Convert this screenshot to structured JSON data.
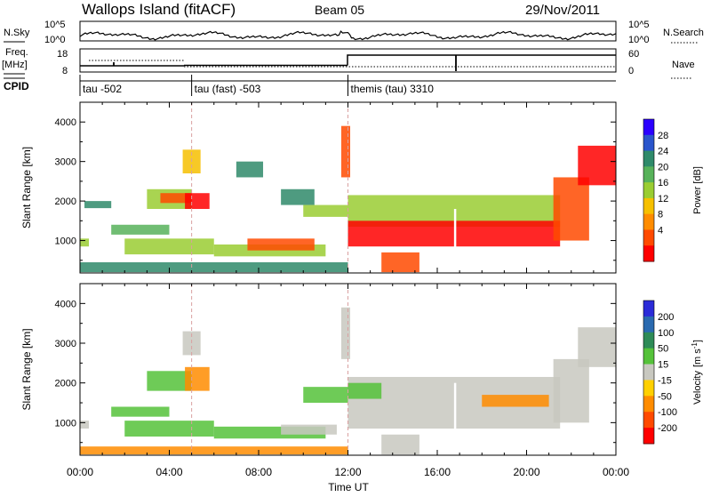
{
  "header": {
    "site": "Wallops Island (fitACF)",
    "beam": "Beam 05",
    "date": "29/Nov/2011"
  },
  "panels": {
    "nsky_label": "N.Sky",
    "nsky_ticks_left": [
      "10^5",
      "10^0"
    ],
    "nsearch_label": "N.Search",
    "nsearch_ticks_right": [
      "10^5",
      "10^0"
    ],
    "freq_label": "Freq.",
    "freq_unit": "[MHz]",
    "freq_ticks": [
      "18",
      "8"
    ],
    "nave_label": "Nave",
    "nave_ticks": [
      "60",
      "0"
    ],
    "cpid_label": "CPID",
    "cpid_segments": [
      {
        "label": "tau -502",
        "start_h": 0
      },
      {
        "label": "tau (fast) -503",
        "start_h": 5
      },
      {
        "label": "themis (tau) 3310",
        "start_h": 12
      }
    ]
  },
  "chart_data": [
    {
      "type": "heatmap",
      "ylabel": "Slant Range [km]",
      "ylim": [
        180,
        4500
      ],
      "y_ticks": [
        "1000",
        "2000",
        "3000",
        "4000"
      ],
      "x_ticks": [
        "00:00",
        "04:00",
        "08:00",
        "12:00",
        "16:00",
        "20:00",
        "00:00"
      ],
      "colorbar_label": "Power [dB]",
      "colorbar_ticks": [
        "28",
        "24",
        "20",
        "16",
        "12",
        "8",
        "4"
      ],
      "colorbar_colors": [
        "#2b00ff",
        "#2a55cc",
        "#2f8a6a",
        "#57b25a",
        "#9acd32",
        "#f6c000",
        "#ff8c00",
        "#ff4a00",
        "#ff0000"
      ],
      "regions": [
        {
          "t0": 0.0,
          "t1": 0.4,
          "r0": 850,
          "r1": 1050,
          "level": 4
        },
        {
          "t0": 0.2,
          "t1": 1.4,
          "r0": 1820,
          "r1": 2000,
          "level": 2
        },
        {
          "t0": 1.4,
          "t1": 4.0,
          "r0": 1150,
          "r1": 1400,
          "level": 3
        },
        {
          "t0": 2.0,
          "t1": 6.0,
          "r0": 650,
          "r1": 1050,
          "level": 4
        },
        {
          "t0": 6.0,
          "t1": 11.0,
          "r0": 600,
          "r1": 900,
          "level": 4
        },
        {
          "t0": 7.5,
          "t1": 10.5,
          "r0": 750,
          "r1": 1050,
          "level": 7
        },
        {
          "t0": 3.0,
          "t1": 5.0,
          "r0": 1800,
          "r1": 2300,
          "level": 4
        },
        {
          "t0": 3.6,
          "t1": 5.0,
          "r0": 1950,
          "r1": 2200,
          "level": 7
        },
        {
          "t0": 4.7,
          "t1": 5.8,
          "r0": 1800,
          "r1": 2200,
          "level": 8
        },
        {
          "t0": 4.6,
          "t1": 5.4,
          "r0": 2700,
          "r1": 3300,
          "level": 5
        },
        {
          "t0": 7.0,
          "t1": 8.2,
          "r0": 2600,
          "r1": 3000,
          "level": 2
        },
        {
          "t0": 9.0,
          "t1": 10.5,
          "r0": 1900,
          "r1": 2300,
          "level": 2
        },
        {
          "t0": 10.0,
          "t1": 12.0,
          "r0": 1600,
          "r1": 1900,
          "level": 4
        },
        {
          "t0": 0.0,
          "t1": 12.0,
          "r0": 200,
          "r1": 450,
          "level": 2
        },
        {
          "t0": 11.7,
          "t1": 12.1,
          "r0": 2600,
          "r1": 3900,
          "level": 7
        },
        {
          "t0": 12.0,
          "t1": 21.5,
          "r0": 1350,
          "r1": 2150,
          "level": 4
        },
        {
          "t0": 12.0,
          "t1": 21.5,
          "r0": 850,
          "r1": 1500,
          "level": 8
        },
        {
          "t0": 13.5,
          "t1": 15.2,
          "r0": 200,
          "r1": 700,
          "level": 7
        },
        {
          "t0": 21.2,
          "t1": 22.8,
          "r0": 1000,
          "r1": 2600,
          "level": 7
        },
        {
          "t0": 22.3,
          "t1": 24.0,
          "r0": 2400,
          "r1": 3400,
          "level": 8
        }
      ]
    },
    {
      "type": "heatmap",
      "ylabel": "Slant Range [km]",
      "ylim": [
        180,
        4500
      ],
      "y_ticks": [
        "1000",
        "2000",
        "3000",
        "4000"
      ],
      "x_ticks": [
        "00:00",
        "04:00",
        "08:00",
        "12:00",
        "16:00",
        "20:00",
        "00:00"
      ],
      "xlabel": "Time UT",
      "colorbar_label": "Velocity",
      "colorbar_unit": "[m s",
      "colorbar_unit_sup": "-1",
      "colorbar_unit_end": "]",
      "colorbar_ticks": [
        "200",
        "100",
        "50",
        "15",
        "-15",
        "-50",
        "-100",
        "-200"
      ],
      "colorbar_colors": [
        "#2b2bd8",
        "#2a6ab0",
        "#2e8b57",
        "#55c23a",
        "#c8c8c0",
        "#ffd000",
        "#ff8c00",
        "#ff4a00",
        "#ff0000"
      ],
      "regions": [
        {
          "t0": 0.0,
          "t1": 0.4,
          "r0": 850,
          "r1": 1050,
          "level": 4
        },
        {
          "t0": 1.4,
          "t1": 4.0,
          "r0": 1150,
          "r1": 1400,
          "level": 3
        },
        {
          "t0": 2.0,
          "t1": 6.0,
          "r0": 650,
          "r1": 1050,
          "level": 3
        },
        {
          "t0": 6.0,
          "t1": 11.0,
          "r0": 600,
          "r1": 900,
          "level": 3
        },
        {
          "t0": 9.0,
          "t1": 11.5,
          "r0": 700,
          "r1": 950,
          "level": 4
        },
        {
          "t0": 3.0,
          "t1": 5.0,
          "r0": 1800,
          "r1": 2300,
          "level": 3
        },
        {
          "t0": 4.7,
          "t1": 5.8,
          "r0": 1800,
          "r1": 2400,
          "level": 6
        },
        {
          "t0": 4.6,
          "t1": 5.4,
          "r0": 2700,
          "r1": 3300,
          "level": 4
        },
        {
          "t0": 10.0,
          "t1": 12.0,
          "r0": 1500,
          "r1": 1900,
          "level": 3
        },
        {
          "t0": 0.0,
          "t1": 12.0,
          "r0": 200,
          "r1": 400,
          "level": 6
        },
        {
          "t0": 11.7,
          "t1": 12.1,
          "r0": 2600,
          "r1": 3900,
          "level": 4
        },
        {
          "t0": 12.0,
          "t1": 21.5,
          "r0": 850,
          "r1": 2150,
          "level": 4
        },
        {
          "t0": 12.0,
          "t1": 13.5,
          "r0": 1600,
          "r1": 2000,
          "level": 3
        },
        {
          "t0": 13.5,
          "t1": 15.2,
          "r0": 200,
          "r1": 700,
          "level": 4
        },
        {
          "t0": 21.2,
          "t1": 22.8,
          "r0": 1000,
          "r1": 2600,
          "level": 4
        },
        {
          "t0": 22.3,
          "t1": 24.0,
          "r0": 2400,
          "r1": 3400,
          "level": 4
        },
        {
          "t0": 18.0,
          "t1": 21.0,
          "r0": 1400,
          "r1": 1700,
          "level": 6
        }
      ]
    }
  ]
}
